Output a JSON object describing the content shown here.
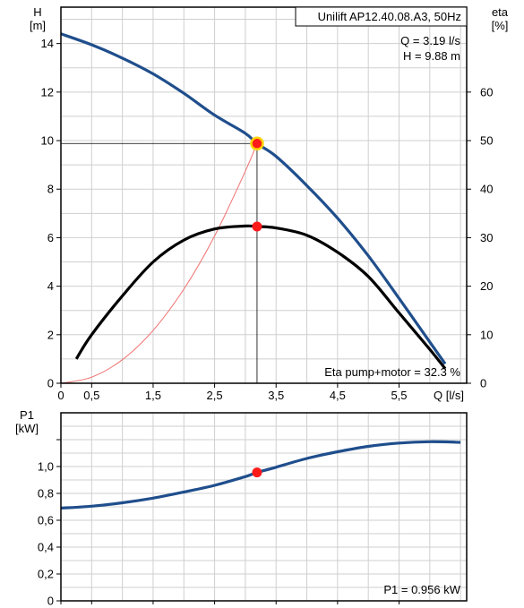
{
  "info": {
    "model": "Unilift AP12.40.08.A3, 50Hz",
    "flow_readout": "Q = 3.19 l/s",
    "head_readout": "H = 9.88 m",
    "eta_readout": "Eta pump+motor = 32.3 %",
    "p1_readout": "P1 = 0.956 kW"
  },
  "colors": {
    "head_curve": "#1f4e8c",
    "eta_curve": "#000000",
    "system_curve": "#f07070",
    "operating_point": "#ff1a1a",
    "duty_ring": "#ffd400",
    "crosshair": "#000000"
  },
  "chart_data": [
    {
      "type": "line",
      "title": "",
      "grid": true,
      "x_axis": {
        "label": "Q [l/s]",
        "range": [
          0,
          6.6
        ],
        "ticks": [
          "0",
          "0,5",
          "1,5",
          "2,5",
          "3,5",
          "4,5",
          "5,5"
        ],
        "tick_values": [
          0,
          0.5,
          1.5,
          2.5,
          3.5,
          4.5,
          5.5
        ]
      },
      "y_axis_left": {
        "label_line1": "H",
        "label_line2": "[m]",
        "range": [
          0,
          15.5
        ],
        "ticks": [
          "0",
          "2",
          "4",
          "6",
          "8",
          "10",
          "12",
          "14"
        ],
        "tick_values": [
          0,
          2,
          4,
          6,
          8,
          10,
          12,
          14
        ]
      },
      "y_axis_right": {
        "label_line1": "eta",
        "label_line2": "[%]",
        "range": [
          0,
          77.5
        ],
        "ticks": [
          "0",
          "10",
          "20",
          "30",
          "40",
          "50",
          "60"
        ],
        "tick_values": [
          0,
          10,
          20,
          30,
          40,
          50,
          60
        ]
      },
      "series": [
        {
          "id": "head",
          "axis": "left",
          "x": [
            0,
            0.5,
            1.0,
            1.5,
            2.0,
            2.5,
            3.0,
            3.19,
            3.5,
            4.0,
            4.5,
            5.0,
            5.5,
            6.0,
            6.25
          ],
          "y": [
            14.4,
            13.95,
            13.4,
            12.75,
            11.95,
            11.05,
            10.3,
            9.88,
            9.35,
            8.15,
            6.8,
            5.25,
            3.5,
            1.7,
            0.8
          ]
        },
        {
          "id": "eta",
          "axis": "right",
          "x": [
            0.25,
            0.5,
            1.0,
            1.5,
            2.0,
            2.5,
            3.0,
            3.19,
            3.5,
            4.0,
            4.5,
            5.0,
            5.5,
            6.0,
            6.25
          ],
          "y": [
            5,
            10,
            18,
            25,
            29.5,
            31.8,
            32.4,
            32.3,
            32,
            30.5,
            27,
            22,
            14.5,
            7,
            3
          ]
        },
        {
          "id": "system",
          "axis": "left",
          "x": [
            0,
            0.5,
            1.0,
            1.5,
            2.0,
            2.5,
            3.0,
            3.19
          ],
          "y": [
            0,
            0.25,
            0.97,
            2.18,
            3.88,
            6.07,
            8.74,
            9.88
          ]
        }
      ],
      "operating_point": {
        "q": 3.19,
        "h": 9.88,
        "eta": 32.3
      }
    },
    {
      "type": "line",
      "title": "",
      "grid": true,
      "x_axis": {
        "range": [
          0,
          6.6
        ],
        "tick_values": [
          0,
          0.5,
          1.5,
          2.5,
          3.5,
          4.5,
          5.5
        ]
      },
      "y_axis_left": {
        "label_line1": "P1",
        "label_line2": "[kW]",
        "range": [
          0,
          1.4
        ],
        "ticks": [
          "0",
          "0,2",
          "0,4",
          "0,6",
          "0,8",
          "1,0"
        ],
        "tick_values": [
          0,
          0.2,
          0.4,
          0.6,
          0.8,
          1.0
        ]
      },
      "series": [
        {
          "id": "p1",
          "x": [
            0,
            0.5,
            1.0,
            1.5,
            2.0,
            2.5,
            3.0,
            3.19,
            3.5,
            4.0,
            4.5,
            5.0,
            5.5,
            6.0,
            6.5
          ],
          "y": [
            0.69,
            0.705,
            0.73,
            0.765,
            0.81,
            0.86,
            0.925,
            0.956,
            0.995,
            1.06,
            1.11,
            1.15,
            1.175,
            1.185,
            1.18
          ]
        }
      ],
      "operating_point": {
        "q": 3.19,
        "p1": 0.956
      }
    }
  ]
}
